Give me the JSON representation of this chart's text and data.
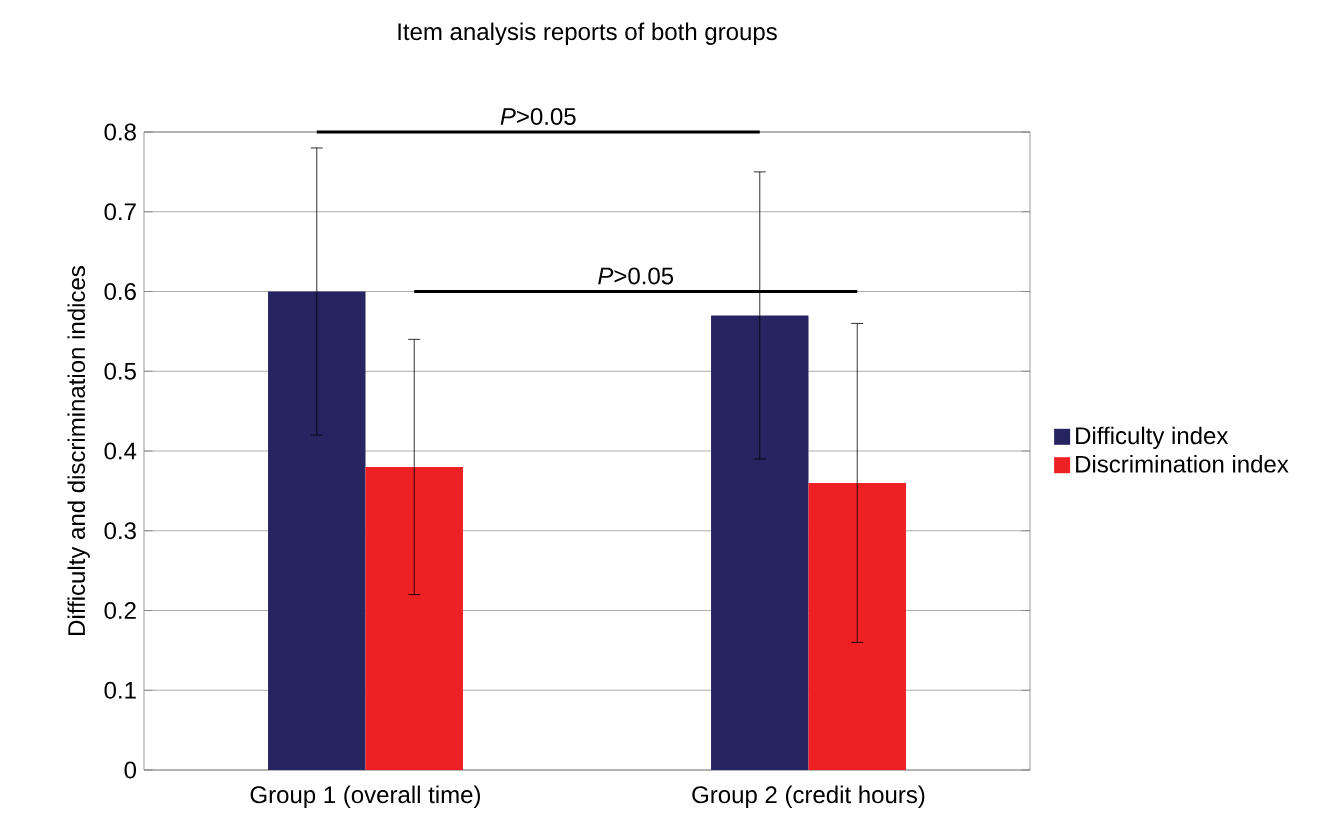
{
  "chart_data": {
    "type": "bar",
    "title": "Item analysis reports of both groups",
    "ylabel": "Difficulty and discrimination indices",
    "categories": [
      "Group 1 (overall time)",
      "Group 2 (credit hours)"
    ],
    "series": [
      {
        "name": "Difficulty index",
        "color": "#262461",
        "values": [
          0.6,
          0.57
        ],
        "errors": [
          0.18,
          0.18
        ]
      },
      {
        "name": "Discrimination index",
        "color": "#ed2024",
        "values": [
          0.38,
          0.36
        ],
        "errors": [
          0.16,
          0.2
        ]
      }
    ],
    "annotations": [
      "*P*>0.05",
      "*P*>0.05"
    ],
    "ylim": [
      0,
      0.8
    ],
    "yticks": [
      0,
      0.1,
      0.2,
      0.3,
      0.4,
      0.5,
      0.6,
      0.7,
      0.8
    ],
    "grid": "y",
    "legend": "right"
  }
}
